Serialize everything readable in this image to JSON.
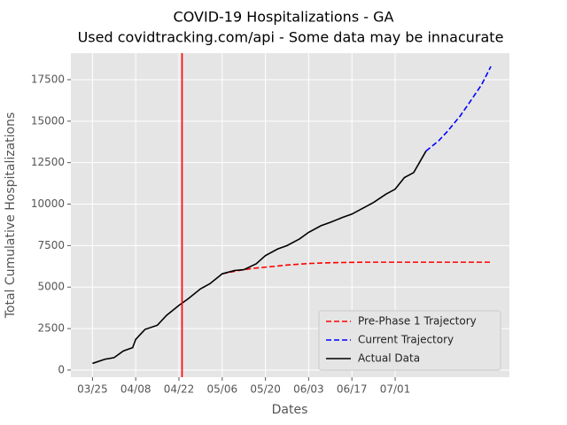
{
  "chart_data": {
    "type": "line",
    "title": "COVID-19 Hospitalizations - GA",
    "subtitle": "Used covidtracking.com/api - Some data may be innacurate",
    "x_label": "Dates",
    "y_label": "Total Cumulative Hospitalizations",
    "x": [
      "03/25",
      "03/29",
      "04/01",
      "04/04",
      "04/07",
      "04/08",
      "04/11",
      "04/15",
      "04/18",
      "04/22",
      "04/25",
      "04/29",
      "05/02",
      "05/06",
      "05/10",
      "05/13",
      "05/17",
      "05/20",
      "05/24",
      "05/27",
      "05/31",
      "06/03",
      "06/07",
      "06/10",
      "06/14",
      "06/17",
      "06/21",
      "06/24",
      "06/28",
      "07/01",
      "07/04",
      "07/07",
      "07/11",
      "07/15",
      "07/18",
      "07/22",
      "07/25",
      "07/29",
      "08/01"
    ],
    "series": [
      {
        "name": "Pre-Phase 1 Trajectory",
        "color": "#ff0000",
        "linestyle": "dashed",
        "values": [
          null,
          null,
          null,
          null,
          null,
          null,
          null,
          null,
          null,
          null,
          null,
          null,
          null,
          5800,
          5950,
          6050,
          6150,
          6200,
          6270,
          6330,
          6380,
          6420,
          6450,
          6470,
          6480,
          6490,
          6500,
          6500,
          6500,
          6500,
          6500,
          6500,
          6500,
          6500,
          6500,
          6500,
          6500,
          6500,
          6500
        ]
      },
      {
        "name": "Current Trajectory",
        "color": "#0000ff",
        "linestyle": "dashed",
        "values": [
          null,
          null,
          null,
          null,
          null,
          null,
          null,
          null,
          null,
          null,
          null,
          null,
          null,
          null,
          null,
          null,
          null,
          null,
          null,
          null,
          null,
          null,
          null,
          null,
          null,
          null,
          null,
          null,
          null,
          null,
          null,
          null,
          13200,
          13800,
          14400,
          15300,
          16100,
          17200,
          18300
        ]
      },
      {
        "name": "Actual Data",
        "color": "#000000",
        "linestyle": "solid",
        "values": [
          400,
          650,
          750,
          1150,
          1350,
          1850,
          2450,
          2700,
          3300,
          3900,
          4300,
          4900,
          5200,
          5800,
          6000,
          6050,
          6400,
          6900,
          7300,
          7500,
          7900,
          8300,
          8700,
          8900,
          9200,
          9400,
          9800,
          10100,
          10600,
          10900,
          11600,
          11900,
          13200,
          null,
          null,
          null,
          null,
          null,
          null
        ]
      }
    ],
    "vline": {
      "x": "04/23",
      "color": "#ff0000"
    },
    "xlim": [
      "03/18",
      "08/07"
    ],
    "xticks": [
      "03/25",
      "04/08",
      "04/22",
      "05/06",
      "05/20",
      "06/03",
      "06/17",
      "07/01"
    ],
    "ylim": [
      -430,
      19100
    ],
    "yticks": [
      0,
      2500,
      5000,
      7500,
      10000,
      12500,
      15000,
      17500
    ],
    "grid": true,
    "legend": "lower right"
  }
}
